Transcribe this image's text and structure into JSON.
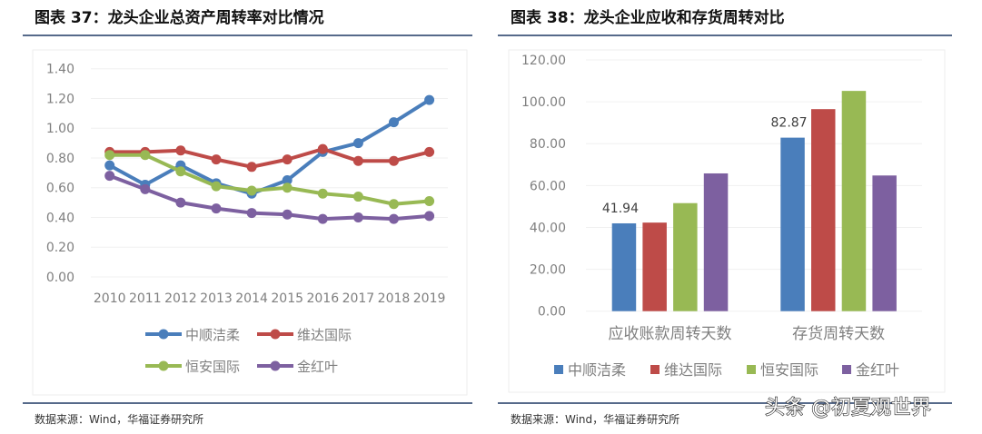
{
  "left": {
    "title": "图表 37：龙头企业总资产周转率对比情况",
    "source": "数据来源：Wind，华福证券研究所"
  },
  "right": {
    "title": "图表 38：龙头企业应收和存货周转对比",
    "source": "数据来源：Wind，华福证券研究所"
  },
  "watermark": "头条 @初夏观世界",
  "colors": {
    "blue": "#4a7ebb",
    "red": "#be4b48",
    "green": "#98b954",
    "purple": "#7d60a0",
    "rule": "#1f3864"
  },
  "chart_data": [
    {
      "type": "line",
      "title": "",
      "ylim": [
        0,
        1.4
      ],
      "yticks": [
        "0.00",
        "0.20",
        "0.40",
        "0.60",
        "0.80",
        "1.00",
        "1.20",
        "1.40"
      ],
      "categories": [
        "2010",
        "2011",
        "2012",
        "2013",
        "2014",
        "2015",
        "2016",
        "2017",
        "2018",
        "2019"
      ],
      "legend": "bottom",
      "grid": true,
      "series": [
        {
          "name": "中顺洁柔",
          "color": "#4a7ebb",
          "values": [
            0.75,
            0.62,
            0.75,
            0.63,
            0.56,
            0.65,
            0.84,
            0.9,
            1.04,
            1.19
          ]
        },
        {
          "name": "维达国际",
          "color": "#be4b48",
          "values": [
            0.84,
            0.84,
            0.85,
            0.79,
            0.74,
            0.79,
            0.86,
            0.78,
            0.78,
            0.84
          ]
        },
        {
          "name": "恒安国际",
          "color": "#98b954",
          "values": [
            0.82,
            0.82,
            0.71,
            0.61,
            0.58,
            0.6,
            0.56,
            0.54,
            0.49,
            0.51
          ]
        },
        {
          "name": "金红叶",
          "color": "#7d60a0",
          "values": [
            0.68,
            0.59,
            0.5,
            0.46,
            0.43,
            0.42,
            0.39,
            0.4,
            0.39,
            0.41
          ]
        }
      ]
    },
    {
      "type": "bar",
      "title": "",
      "ylim": [
        0,
        120
      ],
      "yticks": [
        "0.00",
        "20.00",
        "40.00",
        "60.00",
        "80.00",
        "100.00",
        "120.00"
      ],
      "categories": [
        "应收账款周转天数",
        "存货周转天数"
      ],
      "legend": "bottom",
      "grid": true,
      "series": [
        {
          "name": "中顺洁柔",
          "color": "#4a7ebb",
          "values": [
            41.94,
            82.87
          ],
          "labels": [
            "41.94",
            "82.87"
          ]
        },
        {
          "name": "维达国际",
          "color": "#be4b48",
          "values": [
            42.3,
            96.5
          ]
        },
        {
          "name": "恒安国际",
          "color": "#98b954",
          "values": [
            51.6,
            105.2
          ]
        },
        {
          "name": "金红叶",
          "color": "#7d60a0",
          "values": [
            65.8,
            64.8
          ]
        }
      ]
    }
  ]
}
